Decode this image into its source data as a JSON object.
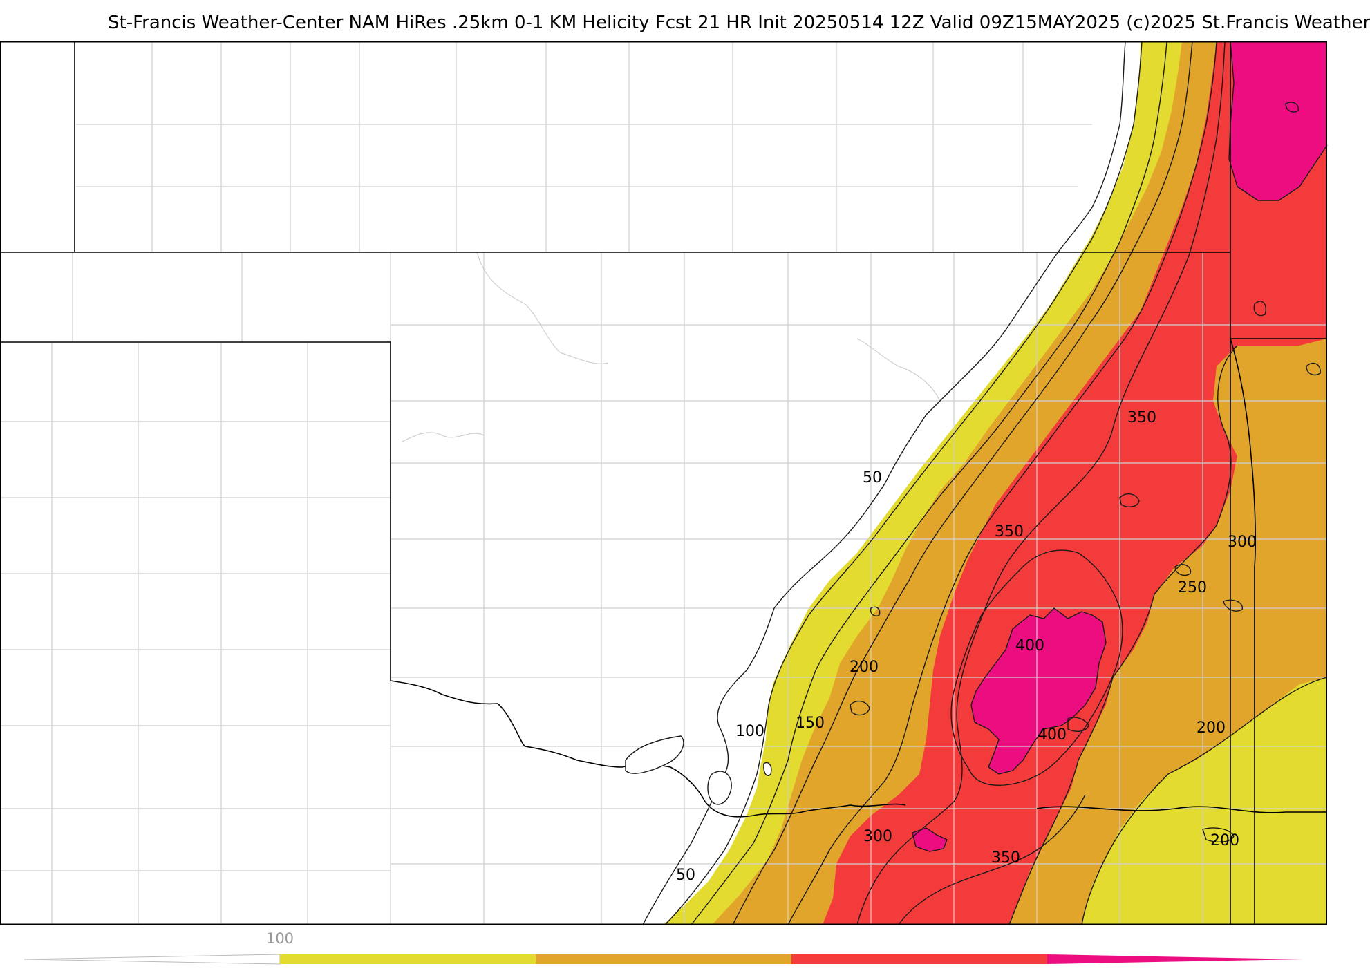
{
  "title": "St-Francis Weather-Center NAM HiRes .25km 0-1 KM Helicity Fcst 21 HR Init 20250514 12Z  Valid 09Z15MAY2025    (c)2025 St.Francis Weather",
  "colors": {
    "band_100_150": "#e4db31",
    "band_150_250": "#e2a52c",
    "band_250_400": "#f43b3c",
    "band_400_plus": "#ec0d81",
    "contour": "#1a1a1a",
    "border": "#000000",
    "county": "#c8c8c8"
  },
  "contour_labels": [
    "50",
    "50",
    "100",
    "150",
    "200",
    "200",
    "200",
    "250",
    "300",
    "300",
    "350",
    "350",
    "350",
    "400",
    "400"
  ],
  "legend": {
    "tick_label": "100",
    "segments": [
      "#e4db31",
      "#e2a52c",
      "#f43b3c",
      "#ec0d81"
    ]
  }
}
